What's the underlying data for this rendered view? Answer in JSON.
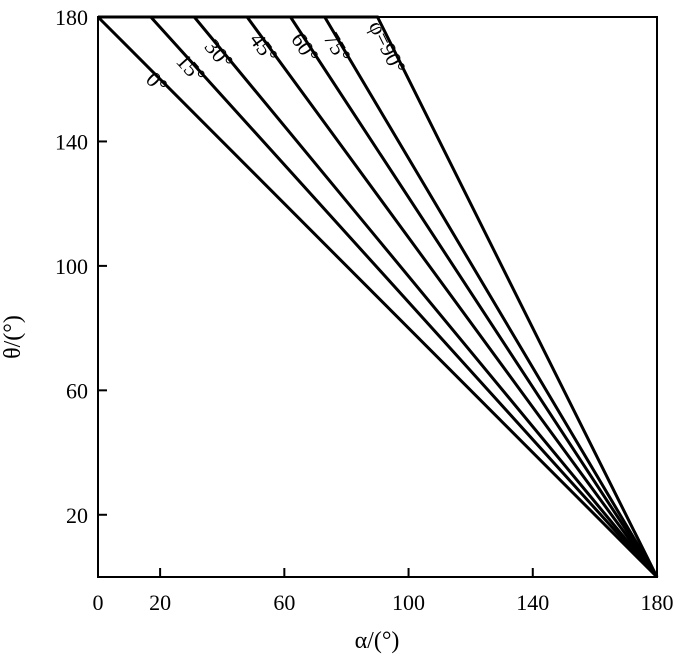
{
  "chart_data": {
    "type": "line",
    "title": "",
    "xlabel": "α/(°)",
    "ylabel": "θ/(°)",
    "xlim": [
      0,
      180
    ],
    "ylim": [
      0,
      180
    ],
    "x_ticks": [
      0,
      20,
      60,
      100,
      140,
      180
    ],
    "y_ticks": [
      20,
      60,
      100,
      140,
      180
    ],
    "grid": false,
    "legend": "none",
    "line_color": "#000000",
    "series": [
      {
        "name": "0°",
        "points": [
          [
            0,
            180
          ],
          [
            180,
            0
          ]
        ]
      },
      {
        "name": "15°",
        "points": [
          [
            0,
            180
          ],
          [
            17,
            180
          ],
          [
            180,
            0
          ]
        ]
      },
      {
        "name": "30°",
        "points": [
          [
            0,
            180
          ],
          [
            31,
            180
          ],
          [
            180,
            0
          ]
        ]
      },
      {
        "name": "45°",
        "points": [
          [
            0,
            180
          ],
          [
            48,
            180
          ],
          [
            180,
            0
          ]
        ]
      },
      {
        "name": "60°",
        "points": [
          [
            0,
            180
          ],
          [
            62,
            180
          ],
          [
            180,
            0
          ]
        ]
      },
      {
        "name": "75°",
        "points": [
          [
            0,
            180
          ],
          [
            73,
            180
          ],
          [
            180,
            0
          ]
        ]
      },
      {
        "name": "φ=90°",
        "points": [
          [
            0,
            180
          ],
          [
            90,
            180
          ],
          [
            180,
            0
          ]
        ]
      }
    ]
  }
}
